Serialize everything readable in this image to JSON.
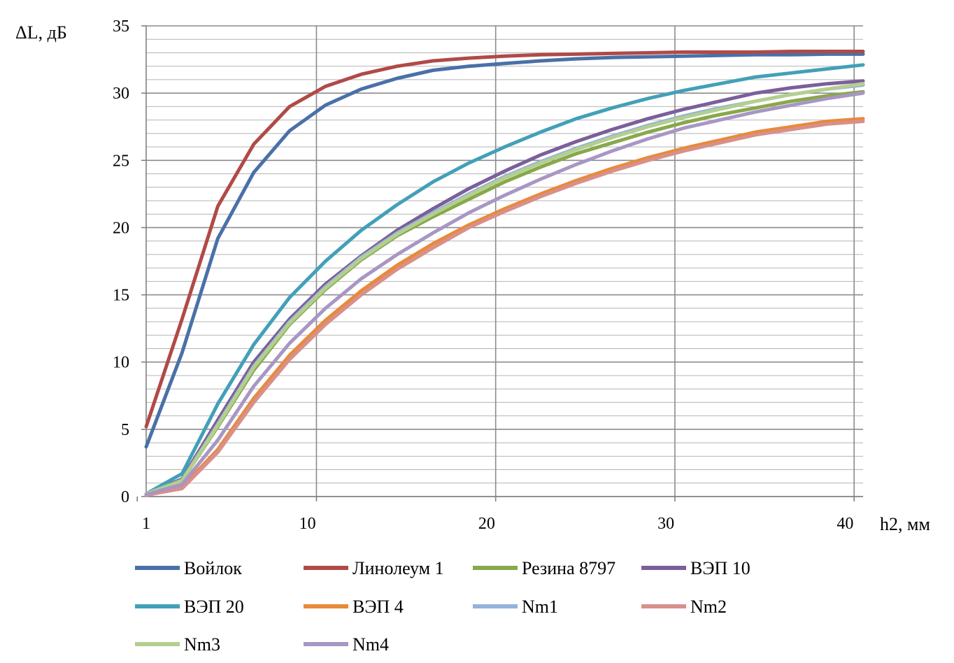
{
  "chart_data": {
    "type": "line",
    "ylabel": "ΔL, дБ",
    "xlabel": "h2, мм",
    "xlim": [
      1,
      41
    ],
    "ylim": [
      0,
      35
    ],
    "x_ticks": [
      "1",
      "10",
      "20",
      "30",
      "40"
    ],
    "y_ticks": [
      "0",
      "5",
      "10",
      "15",
      "20",
      "25",
      "30",
      "35"
    ],
    "grid": "on",
    "legend": "bottom",
    "x": [
      1,
      3,
      5,
      7,
      9,
      11,
      13,
      15,
      17,
      19,
      21,
      23,
      25,
      27,
      29,
      31,
      33,
      35,
      37,
      39,
      41
    ],
    "series": [
      {
        "name": "Войлок",
        "color": "#4a70a8",
        "values": [
          3.7,
          10.7,
          19.2,
          24.1,
          27.2,
          29.1,
          30.3,
          31.1,
          31.7,
          32.0,
          32.2,
          32.4,
          32.55,
          32.65,
          32.7,
          32.75,
          32.8,
          32.85,
          32.85,
          32.9,
          32.9
        ]
      },
      {
        "name": "Линолеум 1",
        "color": "#b04a47",
        "values": [
          5.2,
          13.2,
          21.6,
          26.2,
          29.0,
          30.5,
          31.4,
          32.0,
          32.4,
          32.6,
          32.75,
          32.85,
          32.9,
          32.95,
          33.0,
          33.05,
          33.05,
          33.05,
          33.1,
          33.1,
          33.1
        ]
      },
      {
        "name": "Резина 8797",
        "color": "#88a84a",
        "values": [
          0.2,
          1.2,
          5.2,
          9.4,
          12.8,
          15.4,
          17.6,
          19.4,
          20.8,
          22.1,
          23.4,
          24.5,
          25.5,
          26.3,
          27.1,
          27.8,
          28.4,
          28.9,
          29.4,
          29.8,
          30.1
        ]
      },
      {
        "name": "ВЭП 10",
        "color": "#7b5f9b",
        "values": [
          0.2,
          1.3,
          5.7,
          10.0,
          13.2,
          15.8,
          17.9,
          19.8,
          21.4,
          22.9,
          24.2,
          25.4,
          26.4,
          27.3,
          28.1,
          28.8,
          29.4,
          30.0,
          30.4,
          30.7,
          30.9
        ]
      },
      {
        "name": "ВЭП 20",
        "color": "#42a0b8",
        "values": [
          0.2,
          1.7,
          6.9,
          11.3,
          14.8,
          17.5,
          19.8,
          21.7,
          23.4,
          24.8,
          26.0,
          27.1,
          28.1,
          28.9,
          29.6,
          30.2,
          30.7,
          31.2,
          31.5,
          31.8,
          32.1
        ]
      },
      {
        "name": "ВЭП 4",
        "color": "#e88a3a",
        "values": [
          0.1,
          0.7,
          3.5,
          7.3,
          10.5,
          13.1,
          15.3,
          17.2,
          18.8,
          20.2,
          21.4,
          22.5,
          23.5,
          24.4,
          25.2,
          25.9,
          26.5,
          27.1,
          27.5,
          27.9,
          28.1
        ]
      },
      {
        "name": "Nm1",
        "color": "#95b2dc",
        "values": [
          0.2,
          1.2,
          5.4,
          9.7,
          13.0,
          15.6,
          17.8,
          19.6,
          21.1,
          22.5,
          23.8,
          24.9,
          25.9,
          26.8,
          27.6,
          28.3,
          28.9,
          29.4,
          29.9,
          30.3,
          30.6
        ]
      },
      {
        "name": "Nm2",
        "color": "#d8908c",
        "values": [
          0.1,
          0.6,
          3.3,
          7.0,
          10.2,
          12.8,
          15.0,
          16.9,
          18.5,
          20.0,
          21.2,
          22.3,
          23.3,
          24.2,
          25.0,
          25.7,
          26.3,
          26.9,
          27.3,
          27.7,
          27.9
        ]
      },
      {
        "name": "Nm3",
        "color": "#b3cf8f",
        "values": [
          0.2,
          1.2,
          5.3,
          9.6,
          12.9,
          15.5,
          17.7,
          19.5,
          21.0,
          22.4,
          23.7,
          24.8,
          25.8,
          26.7,
          27.5,
          28.2,
          28.8,
          29.4,
          29.9,
          30.3,
          30.7
        ]
      },
      {
        "name": "Nm4",
        "color": "#a896c4",
        "values": [
          0.15,
          0.9,
          4.2,
          8.2,
          11.4,
          14.0,
          16.2,
          18.0,
          19.6,
          21.1,
          22.4,
          23.6,
          24.7,
          25.7,
          26.6,
          27.4,
          28.0,
          28.6,
          29.1,
          29.6,
          30.0
        ]
      }
    ]
  }
}
